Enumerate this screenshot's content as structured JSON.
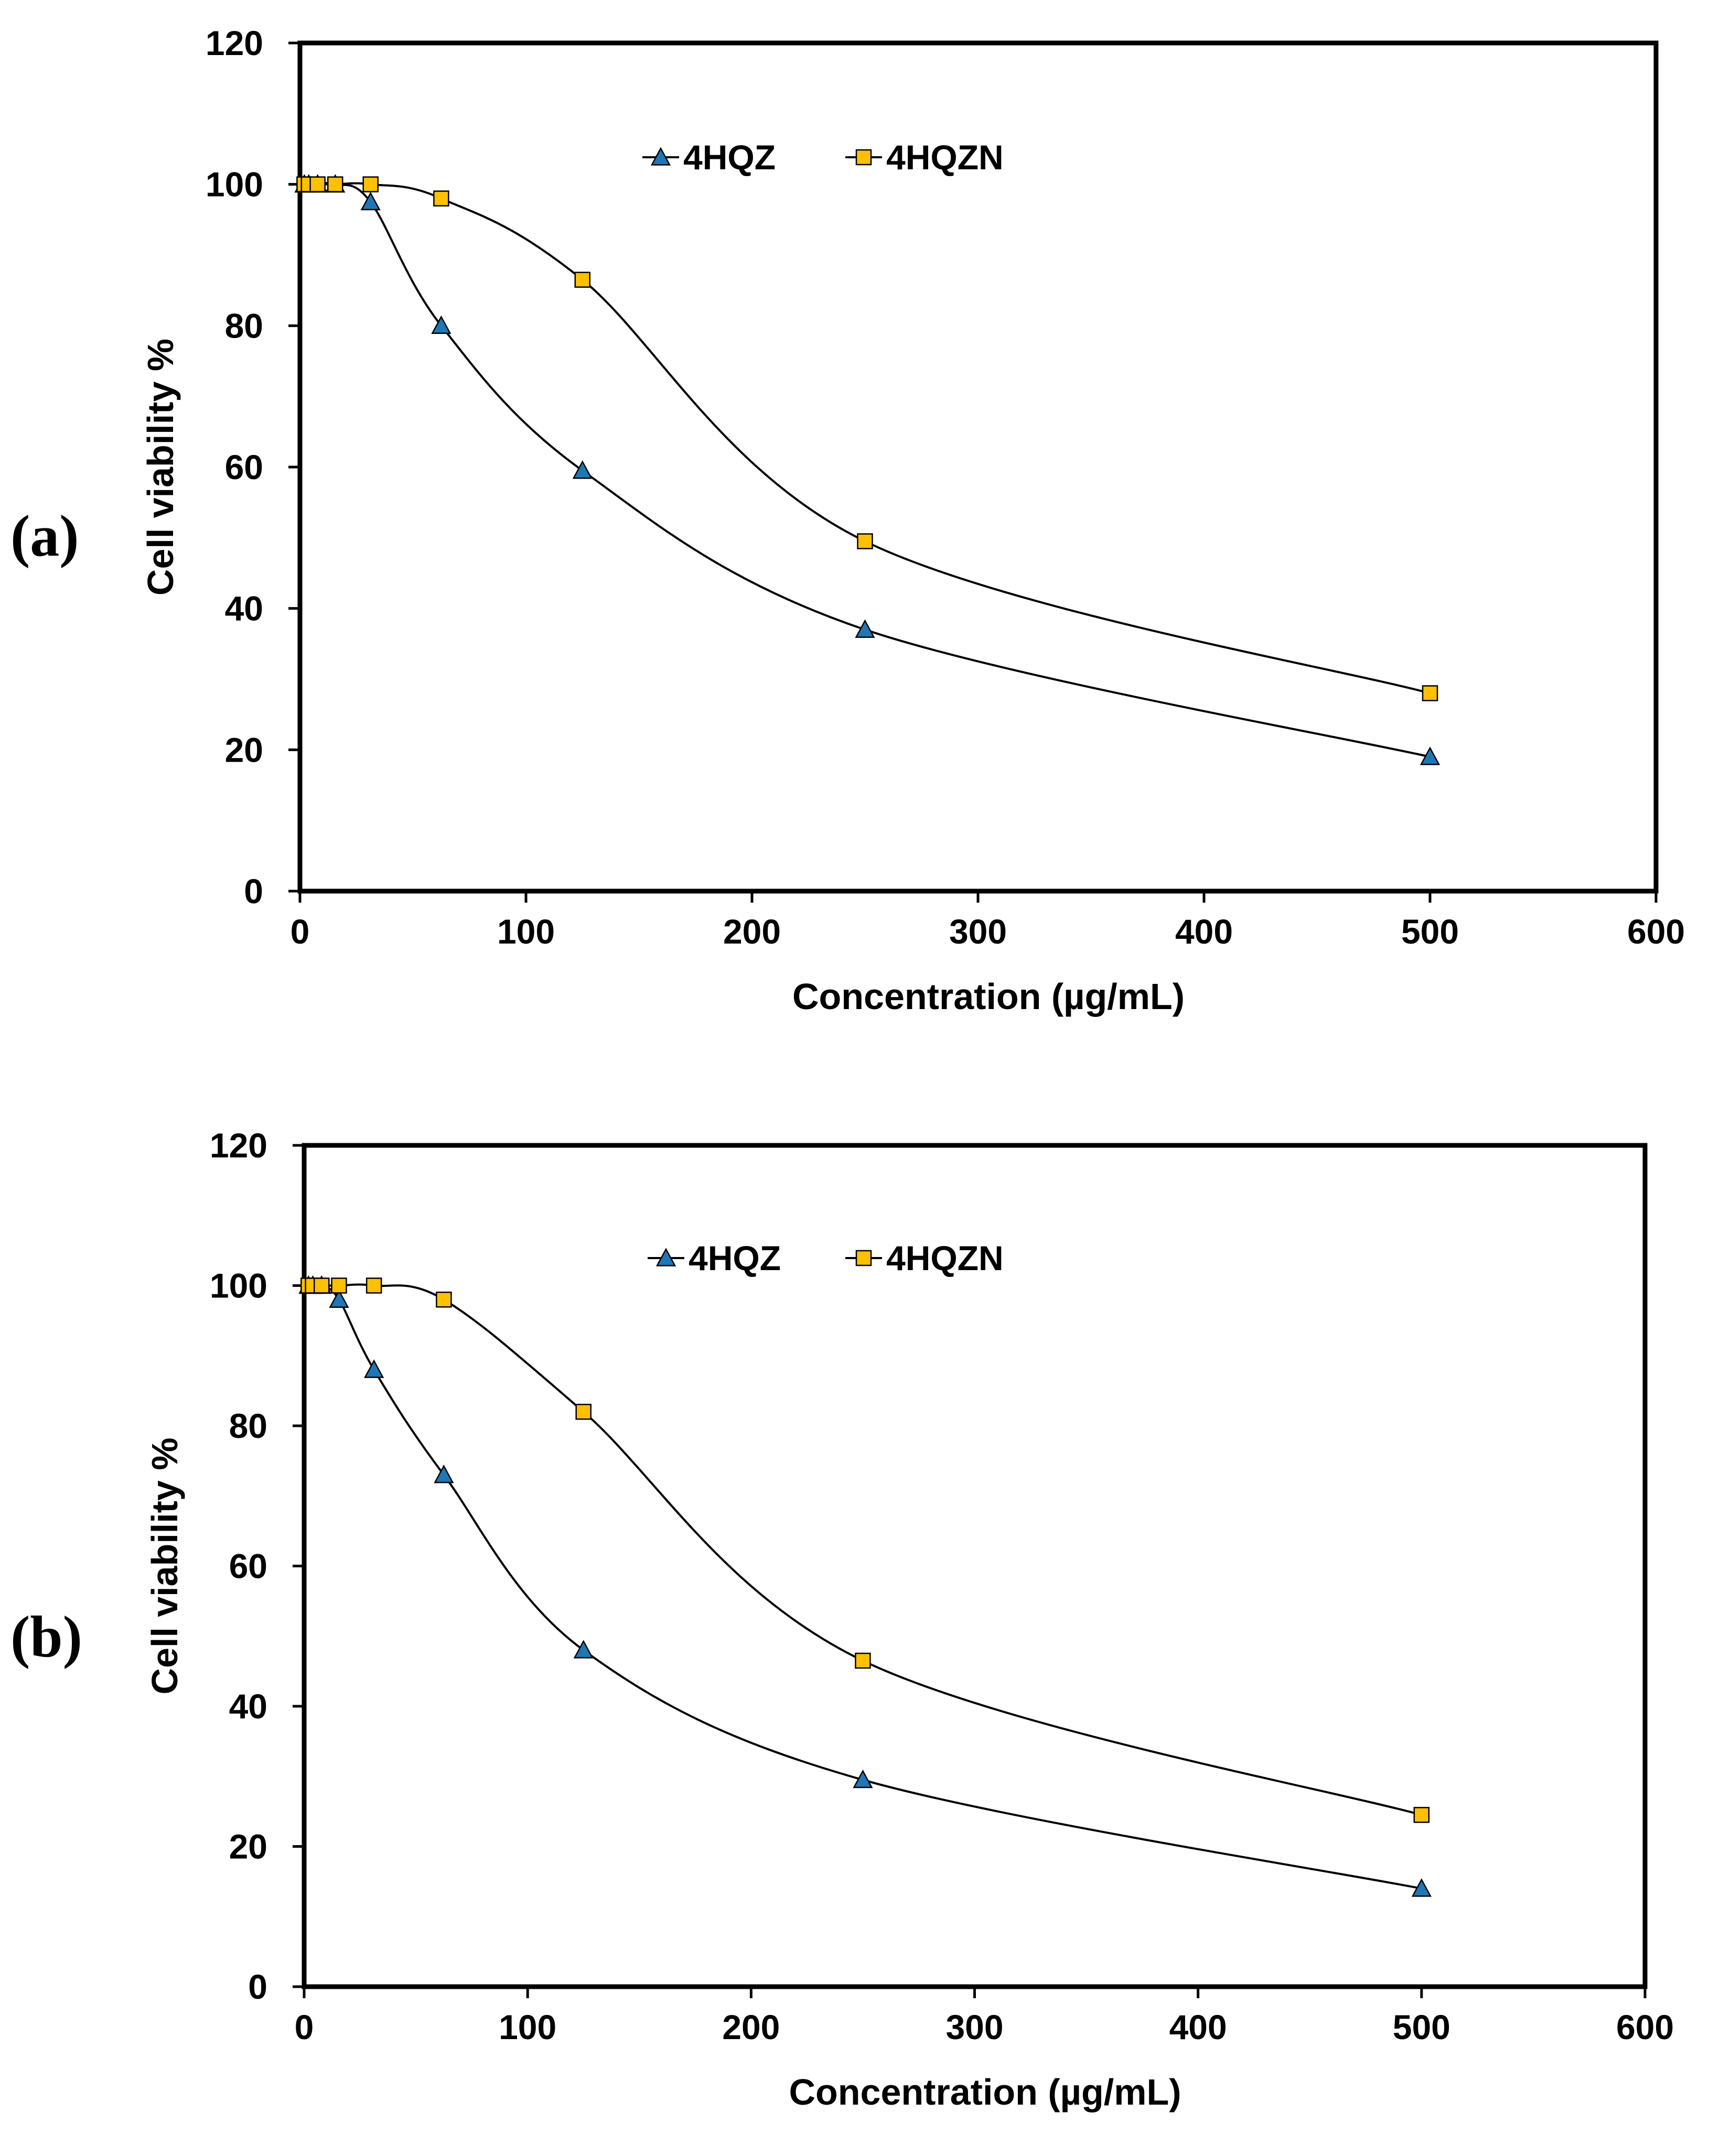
{
  "chart_data": [
    {
      "type": "line",
      "panel_label": "(a)",
      "xlabel": "Concentration (µg/mL)",
      "ylabel": "Cell viability %",
      "xlim": [
        0,
        600
      ],
      "ylim": [
        0,
        120
      ],
      "xticks": [
        0,
        100,
        200,
        300,
        400,
        500,
        600
      ],
      "yticks": [
        0,
        20,
        40,
        60,
        80,
        100,
        120
      ],
      "legend_position": "top-center",
      "series": [
        {
          "name": "4HQZ",
          "marker": "triangle",
          "color": "#1f77b4",
          "x": [
            1.95,
            3.9,
            7.8,
            15.6,
            31.25,
            62.5,
            125,
            250,
            500
          ],
          "y": [
            100,
            100,
            100,
            100,
            97.5,
            80,
            59.5,
            37,
            19
          ]
        },
        {
          "name": "4HQZN",
          "marker": "square",
          "color": "#ffc000",
          "x": [
            1.95,
            3.9,
            7.8,
            15.6,
            31.25,
            62.5,
            125,
            250,
            500
          ],
          "y": [
            100,
            100,
            100,
            100,
            100,
            98,
            86.5,
            49.5,
            28
          ]
        }
      ]
    },
    {
      "type": "line",
      "panel_label": "(b)",
      "xlabel": "Concentration (µg/mL)",
      "ylabel": "Cell viability %",
      "xlim": [
        0,
        600
      ],
      "ylim": [
        0,
        120
      ],
      "xticks": [
        0,
        100,
        200,
        300,
        400,
        500,
        600
      ],
      "yticks": [
        0,
        20,
        40,
        60,
        80,
        100,
        120
      ],
      "legend_position": "top-center",
      "series": [
        {
          "name": "4HQZ",
          "marker": "triangle",
          "color": "#1f77b4",
          "x": [
            1.95,
            3.9,
            7.8,
            15.6,
            31.25,
            62.5,
            125,
            250,
            500
          ],
          "y": [
            100,
            100,
            100,
            98,
            88,
            73,
            48,
            29.5,
            14
          ]
        },
        {
          "name": "4HQZN",
          "marker": "square",
          "color": "#ffc000",
          "x": [
            1.95,
            3.9,
            7.8,
            15.6,
            31.25,
            62.5,
            125,
            250,
            500
          ],
          "y": [
            100,
            100,
            100,
            100,
            100,
            98,
            82,
            46.5,
            24.5
          ]
        }
      ]
    }
  ]
}
